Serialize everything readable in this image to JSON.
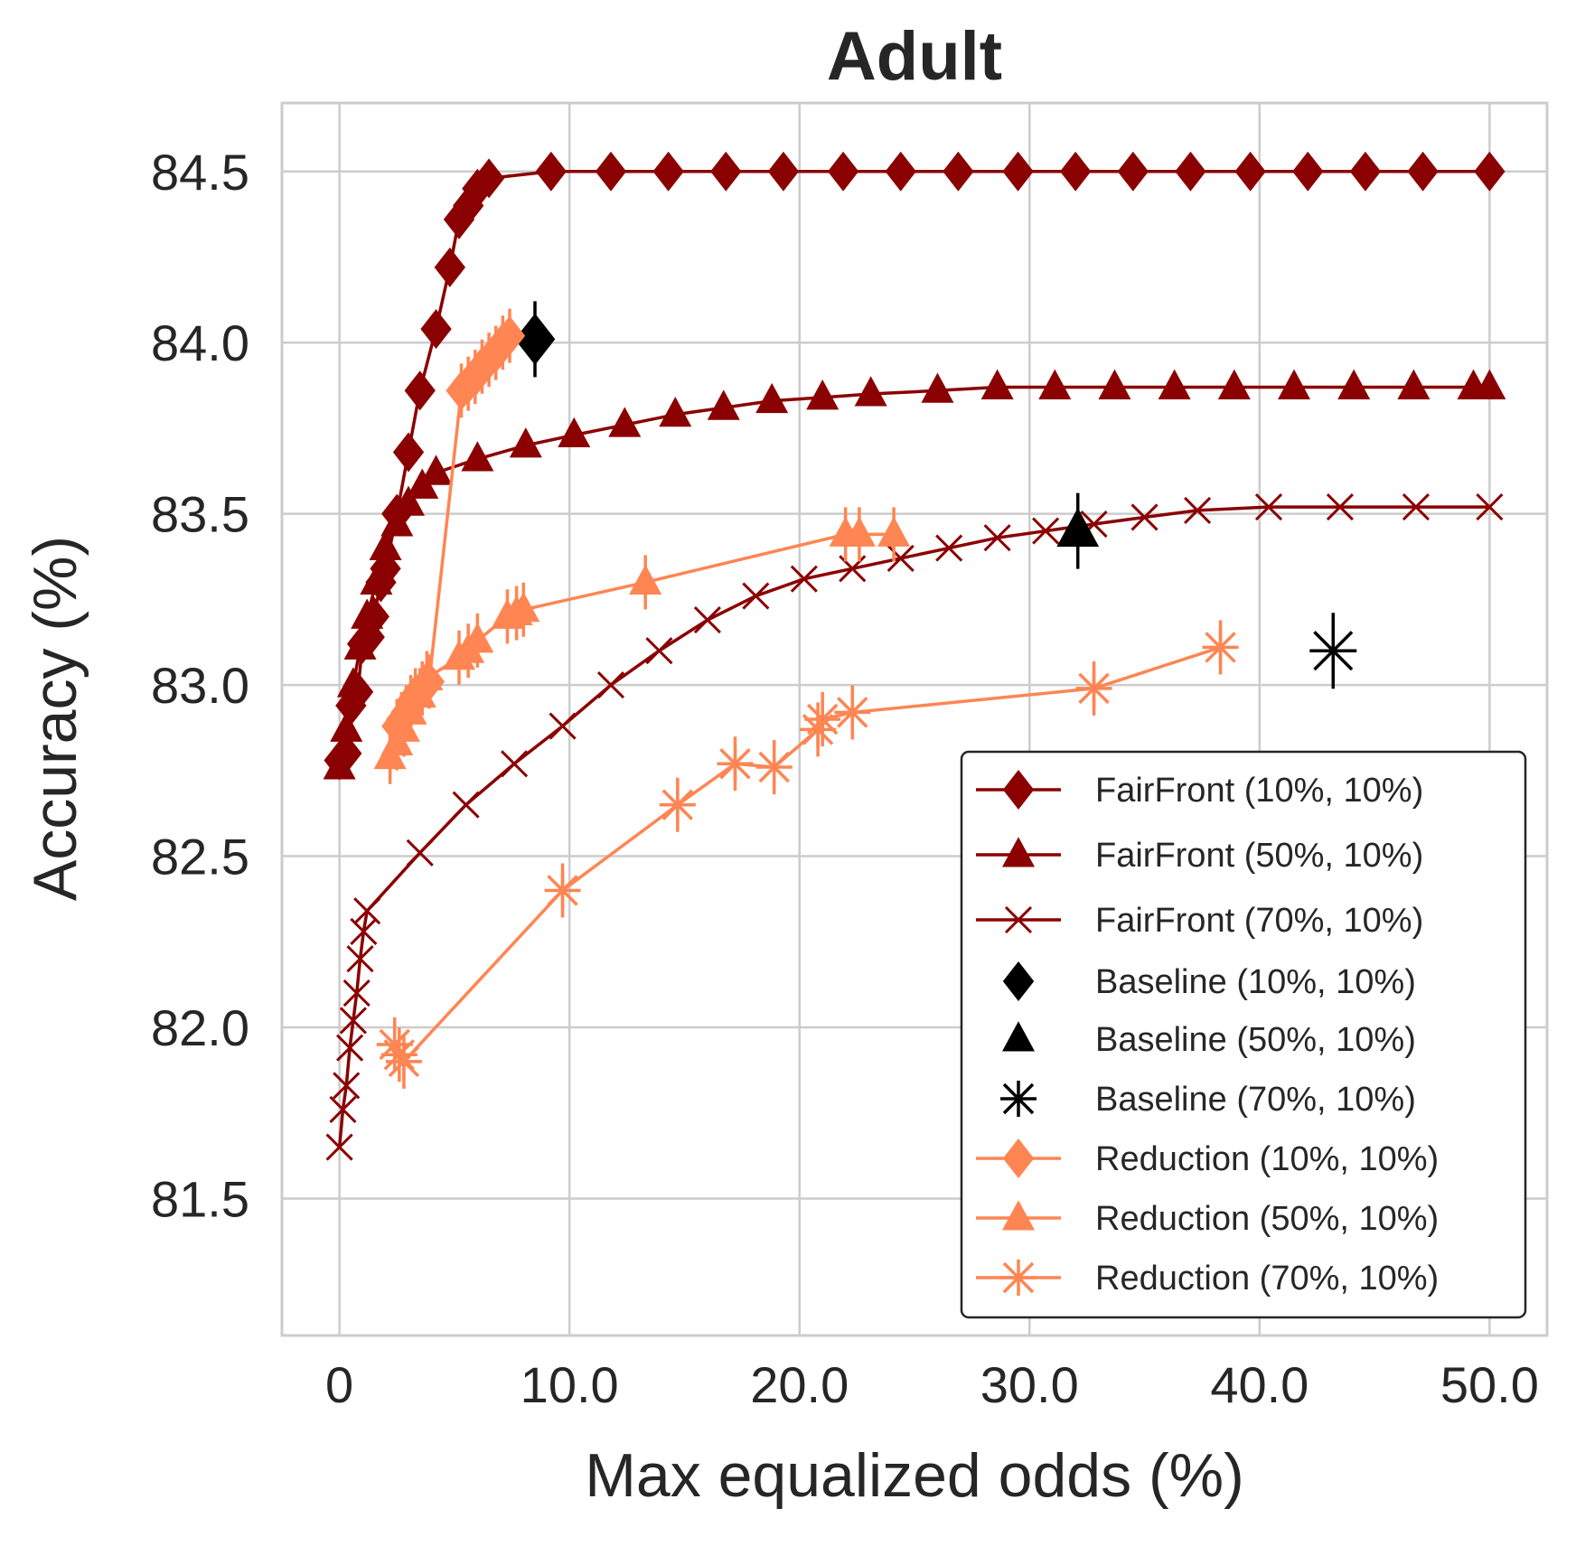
{
  "chart_data": {
    "type": "line",
    "title": "Adult",
    "xlabel": "Max equalized odds (%)",
    "ylabel": "Accuracy (%)",
    "xlim": [
      -2.5,
      52.5
    ],
    "ylim": [
      81.1,
      84.7
    ],
    "x_ticks": [
      0,
      10,
      20,
      30,
      40,
      50
    ],
    "x_tick_labels": [
      "0",
      "10.0",
      "20.0",
      "30.0",
      "40.0",
      "50.0"
    ],
    "y_ticks": [
      81.5,
      82.0,
      82.5,
      83.0,
      83.5,
      84.0,
      84.5
    ],
    "y_tick_labels": [
      "81.5",
      "82.0",
      "82.5",
      "83.0",
      "83.5",
      "84.0",
      "84.5"
    ],
    "grid": true,
    "legend_position": "lower-right",
    "colors": {
      "fairfront": "#8b0000",
      "reduction": "#ff8552",
      "baseline": "#000000",
      "grid": "#cccccc",
      "frame": "#cccccc",
      "text": "#262626"
    },
    "series": [
      {
        "name": "FairFront (10%, 10%)",
        "marker": "diamond",
        "color": "#8b0000",
        "x": [
          0,
          0.3,
          0.5,
          0.8,
          1.0,
          1.3,
          1.5,
          1.8,
          2.0,
          2.5,
          3.0,
          3.5,
          4.2,
          4.8,
          5.2,
          5.6,
          6.0,
          6.5,
          9.2,
          11.8,
          14.3,
          16.8,
          19.3,
          21.9,
          24.4,
          26.9,
          29.5,
          32.0,
          34.5,
          37.0,
          39.6,
          42.1,
          44.6,
          47.1,
          50.0
        ],
        "y": [
          82.78,
          82.8,
          82.94,
          82.98,
          83.12,
          83.14,
          83.2,
          83.3,
          83.34,
          83.5,
          83.68,
          83.86,
          84.04,
          84.22,
          84.36,
          84.4,
          84.45,
          84.48,
          84.5,
          84.5,
          84.5,
          84.5,
          84.5,
          84.5,
          84.5,
          84.5,
          84.5,
          84.5,
          84.5,
          84.5,
          84.5,
          84.5,
          84.5,
          84.5,
          84.5
        ]
      },
      {
        "name": "FairFront (50%, 10%)",
        "marker": "triangle",
        "color": "#8b0000",
        "x": [
          0,
          0.3,
          0.6,
          0.9,
          1.2,
          1.6,
          2.0,
          2.5,
          3.0,
          3.6,
          4.2,
          6.0,
          8.1,
          10.2,
          12.4,
          14.6,
          16.7,
          18.8,
          21.0,
          23.1,
          26.0,
          28.6,
          31.1,
          33.7,
          36.3,
          38.9,
          41.5,
          44.1,
          46.7,
          49.3,
          50.0
        ],
        "y": [
          82.76,
          82.87,
          83.0,
          83.11,
          83.2,
          83.3,
          83.4,
          83.47,
          83.53,
          83.58,
          83.62,
          83.66,
          83.7,
          83.73,
          83.76,
          83.79,
          83.81,
          83.83,
          83.84,
          83.85,
          83.86,
          83.87,
          83.87,
          83.87,
          83.87,
          83.87,
          83.87,
          83.87,
          83.87,
          83.87,
          83.87
        ]
      },
      {
        "name": "FairFront (70%, 10%)",
        "marker": "x",
        "color": "#8b0000",
        "x": [
          0,
          0.15,
          0.3,
          0.45,
          0.6,
          0.75,
          0.9,
          1.05,
          1.2,
          3.5,
          5.5,
          7.6,
          9.7,
          11.8,
          13.9,
          16.0,
          18.1,
          20.2,
          22.3,
          24.4,
          26.5,
          28.6,
          30.7,
          32.8,
          35.0,
          37.3,
          40.4,
          43.5,
          46.8,
          50.0
        ],
        "y": [
          81.65,
          81.76,
          81.83,
          81.94,
          82.02,
          82.1,
          82.2,
          82.28,
          82.34,
          82.51,
          82.65,
          82.77,
          82.88,
          83.0,
          83.1,
          83.19,
          83.26,
          83.31,
          83.34,
          83.37,
          83.4,
          83.43,
          83.45,
          83.47,
          83.49,
          83.51,
          83.52,
          83.52,
          83.52,
          83.52
        ]
      },
      {
        "name": "Baseline (10%, 10%)",
        "marker": "diamond",
        "color": "#000000",
        "line": false,
        "x": [
          8.5
        ],
        "y": [
          84.01
        ]
      },
      {
        "name": "Baseline (50%, 10%)",
        "marker": "triangle",
        "color": "#000000",
        "line": false,
        "x": [
          32.1
        ],
        "y": [
          83.45
        ]
      },
      {
        "name": "Baseline (70%, 10%)",
        "marker": "asterisk",
        "color": "#000000",
        "line": false,
        "x": [
          43.2
        ],
        "y": [
          83.1
        ]
      },
      {
        "name": "Reduction (10%, 10%)",
        "marker": "diamond",
        "color": "#ff8552",
        "x": [
          2.5,
          2.7,
          2.9,
          3.1,
          3.3,
          3.6,
          3.9,
          5.3,
          5.6,
          5.9,
          6.2,
          6.5,
          6.8,
          7.1,
          7.4
        ],
        "y": [
          82.88,
          82.9,
          82.92,
          82.95,
          82.97,
          82.99,
          83.01,
          83.86,
          83.88,
          83.9,
          83.93,
          83.95,
          83.97,
          84.0,
          84.02
        ]
      },
      {
        "name": "Reduction (50%, 10%)",
        "marker": "triangle",
        "color": "#ff8552",
        "x": [
          2.2,
          2.5,
          2.8,
          3.1,
          3.5,
          3.8,
          5.2,
          5.6,
          6.0,
          7.3,
          7.7,
          8.0,
          13.3,
          22.0,
          22.6,
          24.1
        ],
        "y": [
          82.79,
          82.83,
          82.87,
          82.92,
          82.97,
          83.02,
          83.08,
          83.1,
          83.13,
          83.2,
          83.21,
          83.22,
          83.3,
          83.44,
          83.44,
          83.44
        ]
      },
      {
        "name": "Reduction (70%, 10%)",
        "marker": "asterisk",
        "color": "#ff8552",
        "x": [
          2.4,
          2.6,
          2.8,
          9.7,
          14.7,
          17.2,
          18.9,
          20.8,
          21.0,
          22.3,
          32.8,
          38.3
        ],
        "y": [
          81.95,
          81.92,
          81.9,
          82.4,
          82.65,
          82.77,
          82.76,
          82.87,
          82.9,
          82.92,
          82.99,
          83.11
        ]
      }
    ]
  }
}
